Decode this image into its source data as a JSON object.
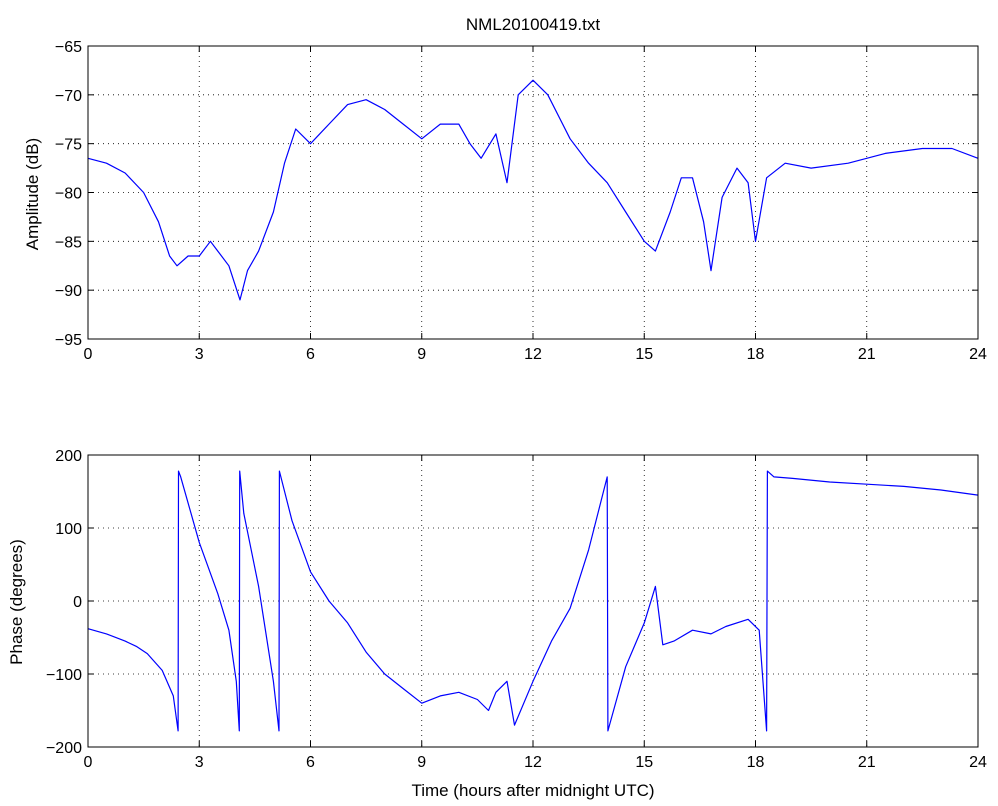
{
  "figure": {
    "title": "NML20100419.txt",
    "line_color": "#0000ff"
  },
  "chart_data": [
    {
      "type": "line",
      "title": "NML20100419.txt",
      "xlabel": "",
      "ylabel": "Amplitude (dB)",
      "xlim": [
        0,
        24
      ],
      "ylim": [
        -95,
        -65
      ],
      "xticks": [
        0,
        3,
        6,
        9,
        12,
        15,
        18,
        21,
        24
      ],
      "yticks": [
        -95,
        -90,
        -85,
        -80,
        -75,
        -70,
        -65
      ],
      "grid": true,
      "series": [
        {
          "x": [
            0,
            0.5,
            1,
            1.5,
            1.9,
            2.2,
            2.4,
            2.7,
            3,
            3.3,
            3.5,
            3.8,
            4.1,
            4.3,
            4.6,
            5,
            5.3,
            5.6,
            6,
            6.5,
            7,
            7.5,
            8,
            8.5,
            9,
            9.5,
            10,
            10.3,
            10.6,
            11,
            11.3,
            11.6,
            12,
            12.4,
            13,
            13.5,
            14,
            14.5,
            15,
            15.3,
            15.7,
            16,
            16.3,
            16.6,
            16.8,
            17.1,
            17.5,
            17.8,
            18,
            18.3,
            18.8,
            19.5,
            20.5,
            21.5,
            22.5,
            23.3,
            24
          ],
          "y": [
            -76.5,
            -77,
            -78,
            -80,
            -83,
            -86.5,
            -87.5,
            -86.5,
            -86.5,
            -85,
            -86,
            -87.5,
            -91,
            -88,
            -86,
            -82,
            -77,
            -73.5,
            -75,
            -73,
            -71,
            -70.5,
            -71.5,
            -73,
            -74.5,
            -73,
            -73,
            -75,
            -76.5,
            -74,
            -79,
            -70,
            -68.5,
            -70,
            -74.5,
            -77,
            -79,
            -82,
            -85,
            -86,
            -82,
            -78.5,
            -78.5,
            -83,
            -88,
            -80.5,
            -77.5,
            -79,
            -85,
            -78.5,
            -77,
            -77.5,
            -77,
            -76,
            -75.5,
            -75.5,
            -76.5
          ]
        }
      ]
    },
    {
      "type": "line",
      "title": "",
      "xlabel": "Time (hours after midnight UTC)",
      "ylabel": "Phase (degrees)",
      "xlim": [
        0,
        24
      ],
      "ylim": [
        -200,
        200
      ],
      "xticks": [
        0,
        3,
        6,
        9,
        12,
        15,
        18,
        21,
        24
      ],
      "yticks": [
        -200,
        -100,
        0,
        100,
        200
      ],
      "grid": true,
      "series": [
        {
          "x": [
            0,
            0.5,
            1,
            1.3,
            1.6,
            2,
            2.3,
            2.43,
            2.44,
            2.5,
            3,
            3.5,
            3.8,
            4.0,
            4.08,
            4.09,
            4.2,
            4.6,
            5.0,
            5.15,
            5.16,
            5.5,
            6,
            6.5,
            7,
            7.5,
            8,
            8.5,
            9,
            9.5,
            10,
            10.5,
            10.8,
            11,
            11.3,
            11.5,
            12,
            12.5,
            13,
            13.5,
            14.0,
            14.02,
            14.5,
            15,
            15.3,
            15.5,
            15.8,
            16.3,
            16.8,
            17.2,
            17.8,
            18.1,
            18.3,
            18.32,
            18.5,
            19,
            20,
            21,
            22,
            23,
            24
          ],
          "y": [
            -38,
            -45,
            -55,
            -62,
            -72,
            -95,
            -130,
            -178,
            178,
            170,
            80,
            10,
            -40,
            -110,
            -178,
            178,
            120,
            20,
            -110,
            -178,
            178,
            110,
            40,
            0,
            -30,
            -70,
            -100,
            -120,
            -140,
            -130,
            -125,
            -135,
            -150,
            -125,
            -110,
            -170,
            -110,
            -55,
            -10,
            70,
            170,
            -178,
            -90,
            -30,
            20,
            -60,
            -55,
            -40,
            -45,
            -35,
            -25,
            -40,
            -178,
            178,
            170,
            168,
            163,
            160,
            157,
            152,
            145
          ]
        }
      ]
    }
  ]
}
